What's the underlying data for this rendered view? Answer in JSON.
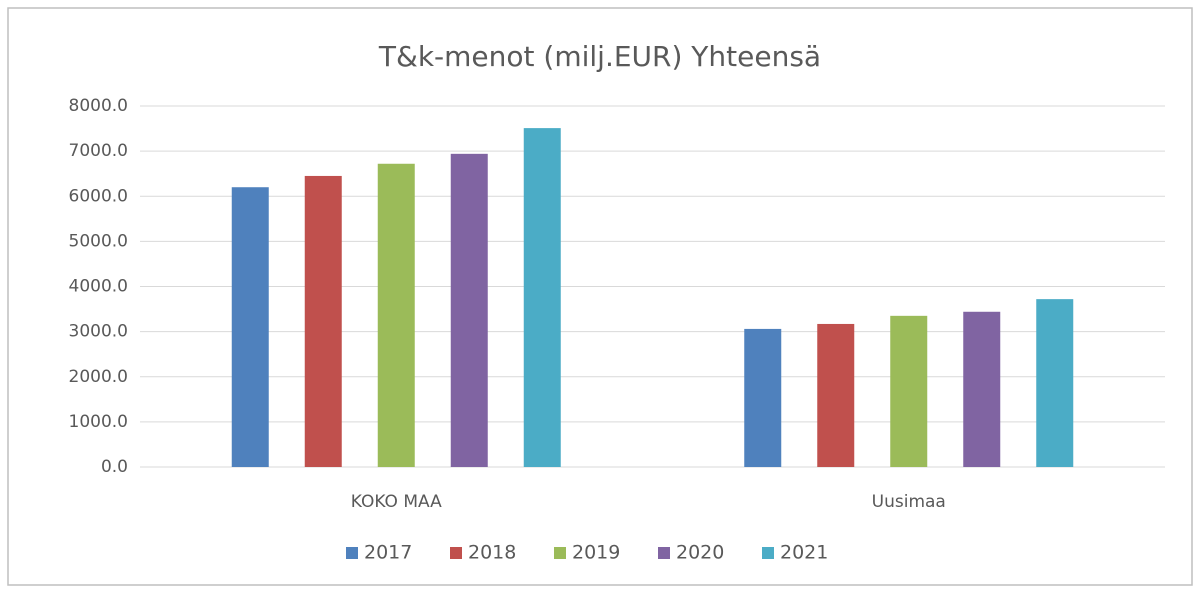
{
  "chart_data": {
    "type": "bar",
    "title": "T&k-menot (milj.EUR) Yhteensä",
    "categories": [
      "KOKO MAA",
      "Uusimaa"
    ],
    "series": [
      {
        "name": "2017",
        "color": "#4f81bd",
        "values": [
          6200,
          3060
        ]
      },
      {
        "name": "2018",
        "color": "#c0504d",
        "values": [
          6450,
          3170
        ]
      },
      {
        "name": "2019",
        "color": "#9bbb59",
        "values": [
          6720,
          3350
        ]
      },
      {
        "name": "2020",
        "color": "#8064a2",
        "values": [
          6940,
          3440
        ]
      },
      {
        "name": "2021",
        "color": "#4bacc6",
        "values": [
          7510,
          3720
        ]
      }
    ],
    "ylim": [
      0,
      8000
    ],
    "yticks": [
      {
        "value": 0,
        "label": "0.0"
      },
      {
        "value": 1000,
        "label": "1000.0"
      },
      {
        "value": 2000,
        "label": "2000.0"
      },
      {
        "value": 3000,
        "label": "3000.0"
      },
      {
        "value": 4000,
        "label": "4000.0"
      },
      {
        "value": 5000,
        "label": "5000.0"
      },
      {
        "value": 6000,
        "label": "6000.0"
      },
      {
        "value": 7000,
        "label": "7000.0"
      },
      {
        "value": 8000,
        "label": "8000.0"
      }
    ],
    "grid": true,
    "legend": "bottom"
  }
}
